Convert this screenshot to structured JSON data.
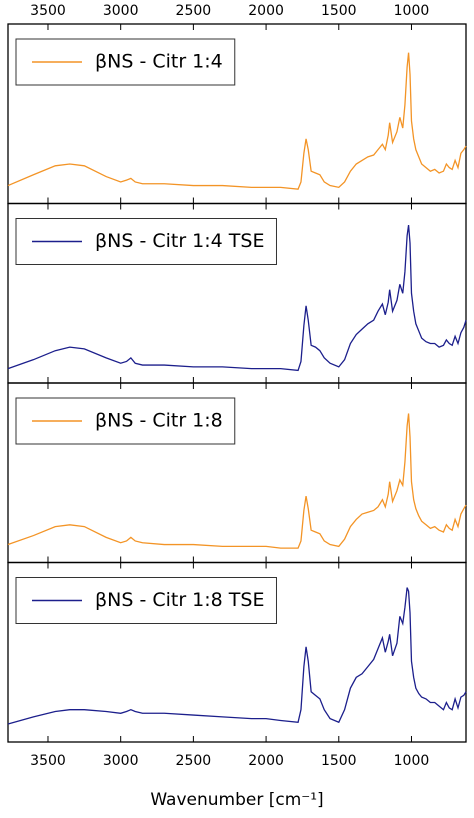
{
  "chart_data": [
    {
      "type": "line",
      "xlim": [
        3775,
        625
      ],
      "xticks": [
        3500,
        3000,
        2500,
        2000,
        1500,
        1000
      ],
      "x": [
        3775,
        3600,
        3450,
        3350,
        3250,
        3100,
        3000,
        2960,
        2930,
        2900,
        2850,
        2700,
        2500,
        2300,
        2100,
        2000,
        1900,
        1780,
        1760,
        1740,
        1725,
        1710,
        1690,
        1660,
        1630,
        1600,
        1560,
        1500,
        1460,
        1420,
        1380,
        1340,
        1300,
        1260,
        1230,
        1200,
        1180,
        1160,
        1150,
        1130,
        1100,
        1080,
        1060,
        1045,
        1030,
        1020,
        1010,
        1000,
        985,
        970,
        950,
        930,
        900,
        870,
        840,
        810,
        780,
        760,
        740,
        720,
        700,
        680,
        660,
        640,
        625
      ],
      "ylim": [
        0,
        1
      ],
      "series": [
        {
          "name": "βNS - Citr 1:4",
          "color": "#f39426",
          "values": [
            0.1,
            0.16,
            0.21,
            0.22,
            0.21,
            0.15,
            0.12,
            0.13,
            0.14,
            0.12,
            0.11,
            0.11,
            0.1,
            0.1,
            0.09,
            0.09,
            0.09,
            0.08,
            0.12,
            0.28,
            0.36,
            0.3,
            0.18,
            0.17,
            0.16,
            0.12,
            0.1,
            0.09,
            0.12,
            0.18,
            0.22,
            0.24,
            0.26,
            0.27,
            0.3,
            0.33,
            0.3,
            0.38,
            0.45,
            0.34,
            0.4,
            0.48,
            0.42,
            0.55,
            0.76,
            0.84,
            0.72,
            0.46,
            0.36,
            0.3,
            0.26,
            0.22,
            0.2,
            0.18,
            0.19,
            0.17,
            0.18,
            0.22,
            0.2,
            0.19,
            0.24,
            0.2,
            0.28,
            0.3,
            0.32
          ]
        }
      ]
    },
    {
      "type": "line",
      "xlim": [
        3775,
        625
      ],
      "xticks": [
        3500,
        3000,
        2500,
        2000,
        1500,
        1000
      ],
      "x": [
        3775,
        3600,
        3450,
        3350,
        3250,
        3100,
        3000,
        2960,
        2930,
        2900,
        2850,
        2700,
        2500,
        2300,
        2100,
        2000,
        1900,
        1780,
        1760,
        1740,
        1725,
        1710,
        1690,
        1660,
        1630,
        1600,
        1560,
        1500,
        1460,
        1420,
        1380,
        1340,
        1300,
        1260,
        1230,
        1200,
        1180,
        1160,
        1150,
        1130,
        1100,
        1080,
        1060,
        1045,
        1030,
        1020,
        1010,
        1000,
        985,
        970,
        950,
        930,
        900,
        870,
        840,
        810,
        780,
        760,
        740,
        720,
        700,
        680,
        660,
        640,
        625
      ],
      "ylim": [
        0,
        1
      ],
      "series": [
        {
          "name": "βNS - Citr 1:4 TSE",
          "color": "#1c1f8c",
          "values": [
            0.08,
            0.13,
            0.18,
            0.2,
            0.19,
            0.14,
            0.11,
            0.12,
            0.14,
            0.11,
            0.1,
            0.1,
            0.09,
            0.09,
            0.08,
            0.08,
            0.08,
            0.07,
            0.12,
            0.32,
            0.43,
            0.35,
            0.21,
            0.2,
            0.18,
            0.14,
            0.11,
            0.09,
            0.13,
            0.22,
            0.27,
            0.3,
            0.33,
            0.35,
            0.4,
            0.44,
            0.38,
            0.45,
            0.52,
            0.4,
            0.46,
            0.55,
            0.5,
            0.62,
            0.82,
            0.88,
            0.78,
            0.5,
            0.4,
            0.33,
            0.29,
            0.25,
            0.23,
            0.22,
            0.22,
            0.2,
            0.21,
            0.24,
            0.22,
            0.21,
            0.26,
            0.22,
            0.28,
            0.31,
            0.35
          ]
        }
      ]
    },
    {
      "type": "line",
      "xlim": [
        3775,
        625
      ],
      "xticks": [
        3500,
        3000,
        2500,
        2000,
        1500,
        1000
      ],
      "x": [
        3775,
        3600,
        3450,
        3350,
        3250,
        3100,
        3000,
        2960,
        2930,
        2900,
        2850,
        2700,
        2500,
        2300,
        2100,
        2000,
        1900,
        1780,
        1760,
        1740,
        1725,
        1710,
        1690,
        1660,
        1630,
        1600,
        1560,
        1500,
        1460,
        1420,
        1380,
        1340,
        1300,
        1260,
        1230,
        1200,
        1180,
        1160,
        1150,
        1130,
        1100,
        1080,
        1060,
        1045,
        1030,
        1020,
        1010,
        1000,
        985,
        970,
        950,
        930,
        900,
        870,
        840,
        810,
        780,
        760,
        740,
        720,
        700,
        680,
        660,
        640,
        625
      ],
      "ylim": [
        0,
        1
      ],
      "series": [
        {
          "name": "βNS - Citr 1:8",
          "color": "#f39426",
          "values": [
            0.1,
            0.15,
            0.2,
            0.21,
            0.2,
            0.14,
            0.11,
            0.12,
            0.14,
            0.12,
            0.11,
            0.1,
            0.1,
            0.09,
            0.09,
            0.09,
            0.08,
            0.08,
            0.12,
            0.29,
            0.37,
            0.3,
            0.18,
            0.17,
            0.16,
            0.12,
            0.1,
            0.09,
            0.13,
            0.2,
            0.24,
            0.27,
            0.28,
            0.29,
            0.31,
            0.35,
            0.31,
            0.38,
            0.45,
            0.34,
            0.4,
            0.46,
            0.43,
            0.56,
            0.76,
            0.83,
            0.7,
            0.45,
            0.35,
            0.3,
            0.26,
            0.23,
            0.21,
            0.19,
            0.2,
            0.18,
            0.17,
            0.21,
            0.19,
            0.18,
            0.24,
            0.2,
            0.27,
            0.3,
            0.32
          ]
        }
      ]
    },
    {
      "type": "line",
      "xlim": [
        3775,
        625
      ],
      "xticks": [
        3500,
        3000,
        2500,
        2000,
        1500,
        1000
      ],
      "x_label": "Wavenumber [cm⁻¹]",
      "x": [
        3775,
        3600,
        3450,
        3350,
        3250,
        3100,
        3000,
        2960,
        2930,
        2900,
        2850,
        2700,
        2500,
        2300,
        2100,
        2000,
        1900,
        1780,
        1760,
        1740,
        1725,
        1710,
        1690,
        1660,
        1630,
        1600,
        1560,
        1500,
        1460,
        1420,
        1380,
        1340,
        1300,
        1260,
        1230,
        1200,
        1180,
        1160,
        1150,
        1130,
        1100,
        1080,
        1060,
        1045,
        1030,
        1020,
        1010,
        1000,
        985,
        970,
        950,
        930,
        900,
        870,
        840,
        810,
        780,
        760,
        740,
        720,
        700,
        680,
        660,
        640,
        625
      ],
      "ylim": [
        0,
        1
      ],
      "series": [
        {
          "name": "βNS - Citr 1:8 TSE",
          "color": "#1c1f8c",
          "values": [
            0.1,
            0.14,
            0.17,
            0.18,
            0.18,
            0.17,
            0.16,
            0.17,
            0.18,
            0.17,
            0.16,
            0.16,
            0.15,
            0.14,
            0.13,
            0.13,
            0.12,
            0.11,
            0.18,
            0.42,
            0.53,
            0.45,
            0.28,
            0.26,
            0.24,
            0.18,
            0.13,
            0.11,
            0.18,
            0.3,
            0.36,
            0.38,
            0.42,
            0.46,
            0.52,
            0.58,
            0.5,
            0.56,
            0.6,
            0.48,
            0.55,
            0.7,
            0.66,
            0.75,
            0.86,
            0.84,
            0.72,
            0.45,
            0.36,
            0.3,
            0.27,
            0.25,
            0.24,
            0.22,
            0.22,
            0.2,
            0.18,
            0.22,
            0.19,
            0.18,
            0.24,
            0.19,
            0.25,
            0.26,
            0.28
          ]
        }
      ]
    }
  ]
}
